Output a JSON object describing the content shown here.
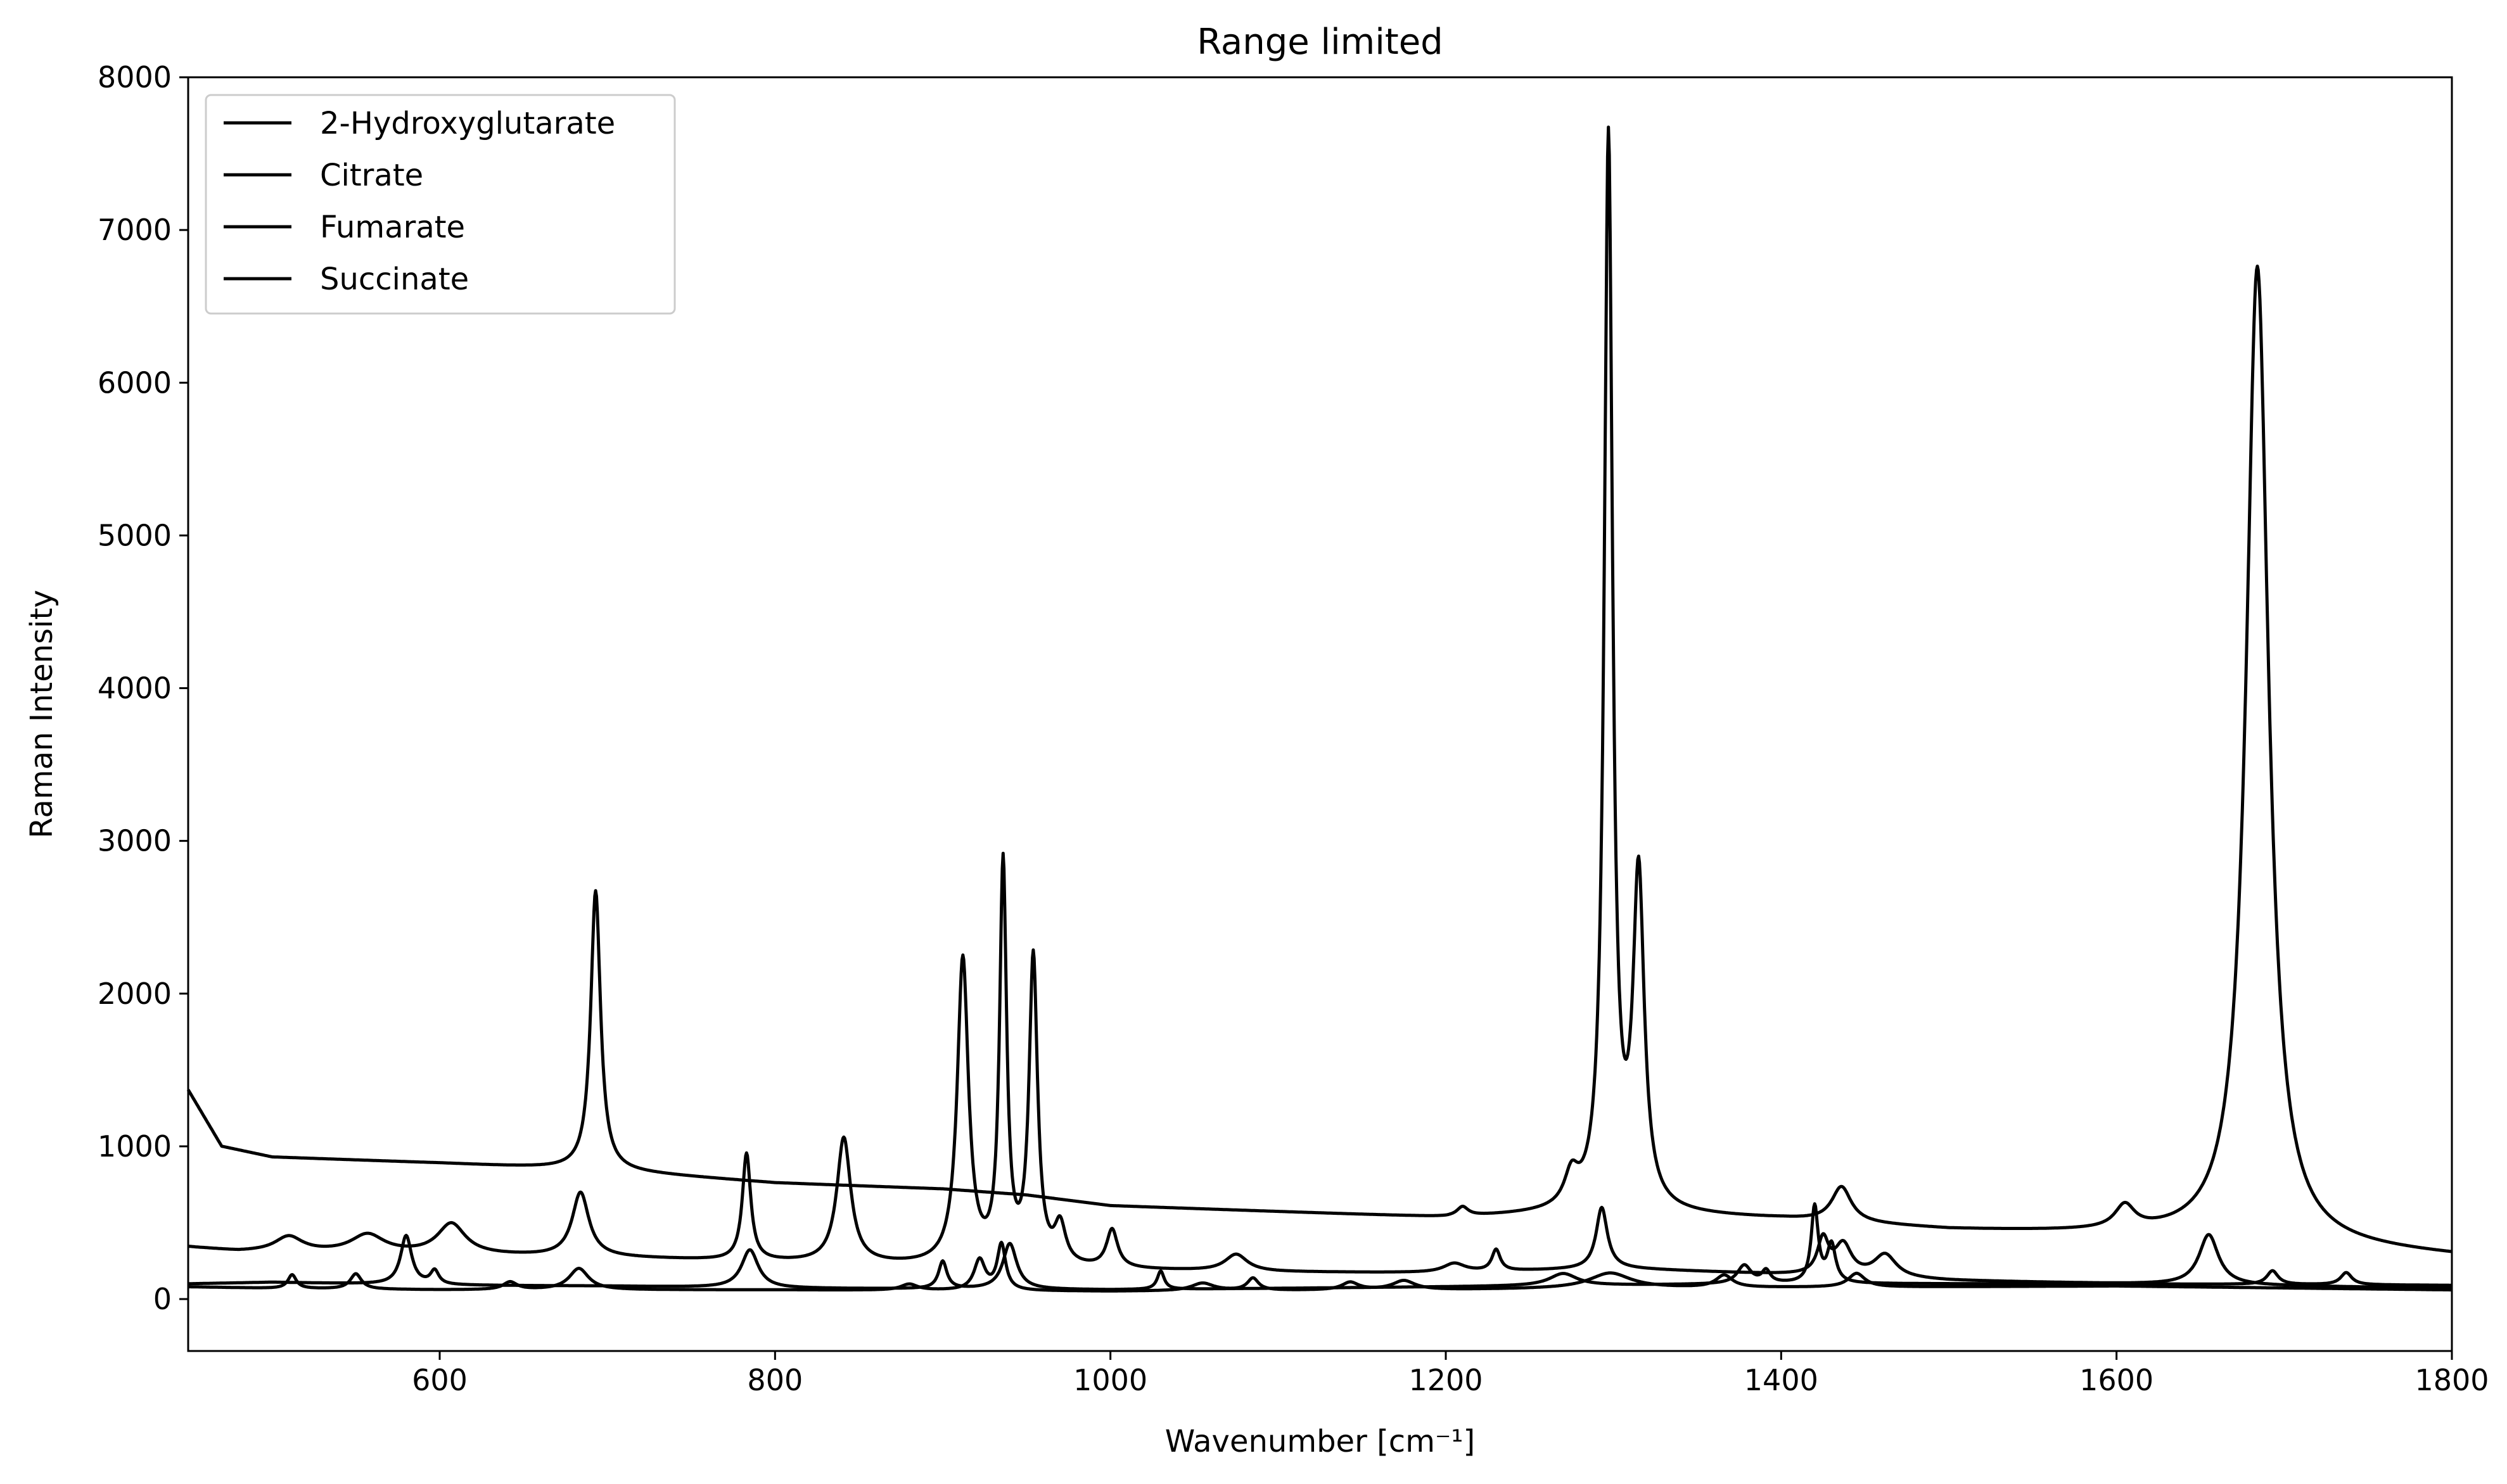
{
  "chart_data": {
    "type": "line",
    "title": "Range limited",
    "xlabel": "Wavenumber [cm⁻¹]",
    "ylabel": "Raman Intensity",
    "xlim": [
      450,
      1800
    ],
    "ylim": [
      -340,
      8000
    ],
    "xticks": [
      600,
      800,
      1000,
      1200,
      1400,
      1600,
      1800
    ],
    "yticks": [
      0,
      1000,
      2000,
      3000,
      4000,
      5000,
      6000,
      7000,
      8000
    ],
    "grid": false,
    "legend_position": "top-left",
    "line_color": "#000000",
    "series": [
      {
        "name": "2-Hydroxyglutarate",
        "baseline": [
          [
            450,
            340
          ],
          [
            480,
            310
          ],
          [
            600,
            290
          ],
          [
            700,
            270
          ],
          [
            800,
            240
          ],
          [
            900,
            210
          ],
          [
            1000,
            190
          ],
          [
            1100,
            175
          ],
          [
            1200,
            170
          ],
          [
            1300,
            200
          ],
          [
            1400,
            160
          ],
          [
            1500,
            120
          ],
          [
            1600,
            100
          ],
          [
            1800,
            70
          ]
        ],
        "peaks": [
          [
            510,
            100,
            10
          ],
          [
            557,
            120,
            12
          ],
          [
            607,
            200,
            10
          ],
          [
            684,
            420,
            6
          ],
          [
            783,
            700,
            3
          ],
          [
            841,
            820,
            5
          ],
          [
            912,
            2000,
            4
          ],
          [
            936,
            2600,
            2.5
          ],
          [
            954,
            2000,
            3
          ],
          [
            970,
            250,
            4
          ],
          [
            1001,
            250,
            4
          ],
          [
            1075,
            110,
            8
          ],
          [
            1205,
            60,
            8
          ],
          [
            1230,
            140,
            3
          ],
          [
            1293,
            400,
            4
          ],
          [
            1425,
            230,
            4
          ],
          [
            1437,
            200,
            6
          ],
          [
            1462,
            150,
            8
          ],
          [
            1655,
            330,
            7
          ]
        ]
      },
      {
        "name": "Citrate",
        "baseline": [
          [
            450,
            1370
          ],
          [
            470,
            1000
          ],
          [
            500,
            930
          ],
          [
            600,
            890
          ],
          [
            700,
            840
          ],
          [
            800,
            760
          ],
          [
            900,
            720
          ],
          [
            950,
            680
          ],
          [
            1000,
            610
          ],
          [
            1100,
            570
          ],
          [
            1200,
            530
          ],
          [
            1300,
            560
          ],
          [
            1400,
            520
          ],
          [
            1500,
            450
          ],
          [
            1600,
            420
          ],
          [
            1700,
            350
          ],
          [
            1800,
            280
          ]
        ],
        "peaks": [
          [
            693,
            1830,
            3.5
          ],
          [
            1297,
            7000,
            3
          ],
          [
            1315,
            2150,
            4
          ],
          [
            1275,
            200,
            5
          ],
          [
            1436,
            230,
            7
          ],
          [
            1605,
            150,
            7
          ],
          [
            1684,
            6400,
            8
          ],
          [
            1210,
            60,
            4
          ]
        ]
      },
      {
        "name": "Fumarate",
        "baseline": [
          [
            450,
            100
          ],
          [
            500,
            110
          ],
          [
            600,
            90
          ],
          [
            700,
            85
          ],
          [
            800,
            70
          ],
          [
            900,
            65
          ],
          [
            1000,
            60
          ],
          [
            1100,
            70
          ],
          [
            1200,
            80
          ],
          [
            1300,
            90
          ],
          [
            1400,
            100
          ],
          [
            1500,
            100
          ],
          [
            1600,
            100
          ],
          [
            1800,
            90
          ]
        ],
        "peaks": [
          [
            580,
            320,
            4
          ],
          [
            597,
            90,
            3
          ],
          [
            785,
            250,
            6
          ],
          [
            900,
            180,
            3
          ],
          [
            940,
            300,
            5
          ],
          [
            1030,
            120,
            2.5
          ],
          [
            1270,
            80,
            10
          ],
          [
            1378,
            120,
            5
          ],
          [
            1391,
            80,
            3
          ],
          [
            1420,
            500,
            2.5
          ],
          [
            1430,
            250,
            3
          ],
          [
            1693,
            90,
            4
          ],
          [
            1737,
            80,
            4
          ]
        ]
      },
      {
        "name": "Succinate",
        "baseline": [
          [
            450,
            80
          ],
          [
            500,
            70
          ],
          [
            600,
            60
          ],
          [
            700,
            60
          ],
          [
            800,
            60
          ],
          [
            900,
            55
          ],
          [
            1000,
            50
          ],
          [
            1100,
            55
          ],
          [
            1200,
            60
          ],
          [
            1300,
            70
          ],
          [
            1400,
            75
          ],
          [
            1500,
            80
          ],
          [
            1600,
            85
          ],
          [
            1800,
            60
          ]
        ],
        "peaks": [
          [
            512,
            90,
            3
          ],
          [
            550,
            100,
            4
          ],
          [
            642,
            50,
            5
          ],
          [
            683,
            140,
            7
          ],
          [
            880,
            40,
            6
          ],
          [
            922,
            200,
            4
          ],
          [
            935,
            300,
            3
          ],
          [
            1055,
            50,
            8
          ],
          [
            1085,
            80,
            4
          ],
          [
            1143,
            50,
            6
          ],
          [
            1175,
            60,
            8
          ],
          [
            1298,
            100,
            15
          ],
          [
            1366,
            80,
            6
          ],
          [
            1445,
            90,
            6
          ]
        ]
      }
    ]
  }
}
